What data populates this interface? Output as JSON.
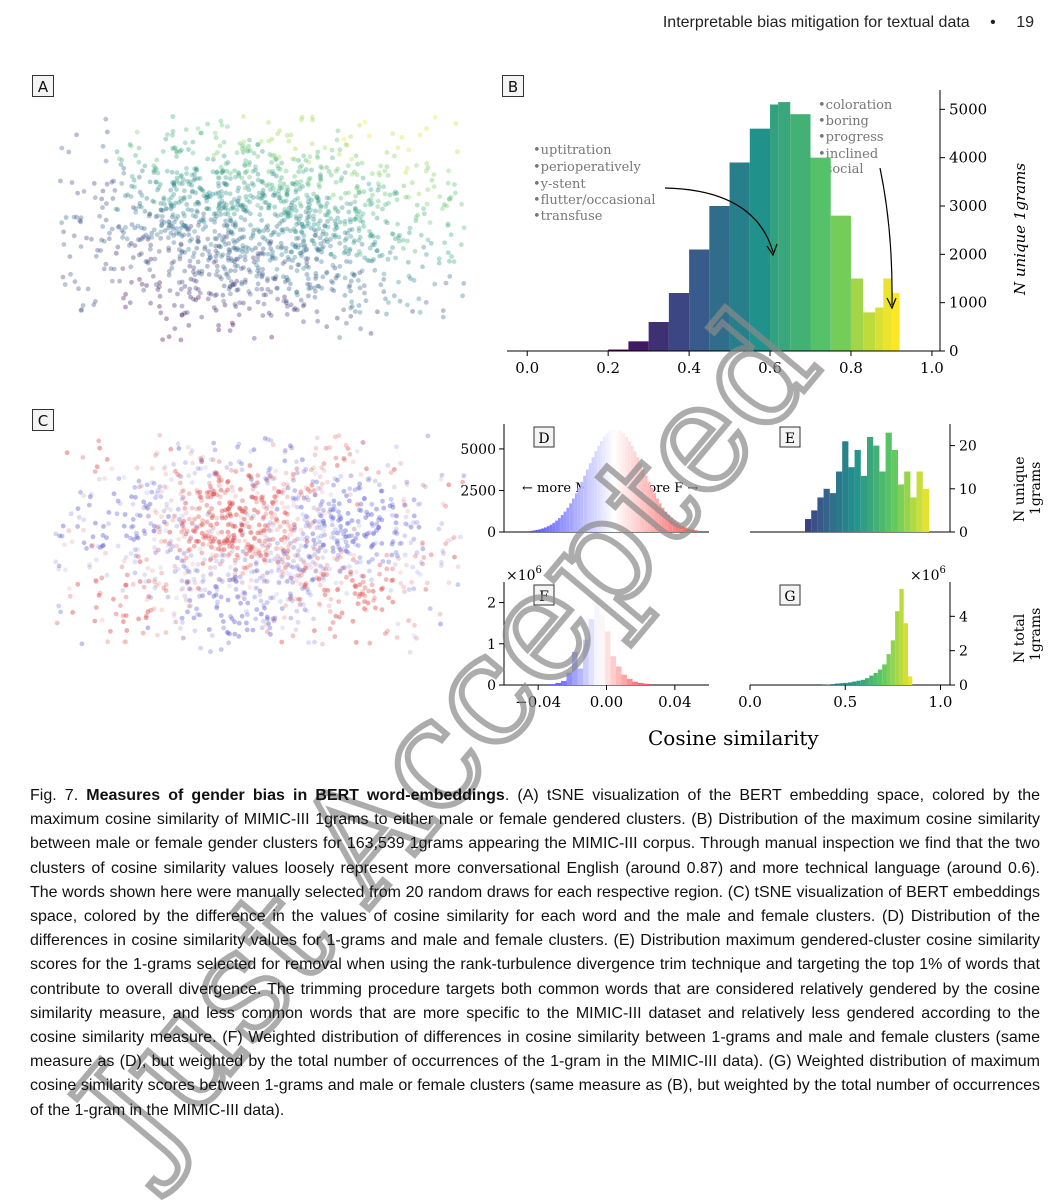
{
  "header": {
    "running_title": "Interpretable bias mitigation for textual data",
    "separator": "•",
    "page_number": "19"
  },
  "panels": {
    "A": "A",
    "B": "B",
    "C": "C",
    "D": "D",
    "E": "E",
    "F": "F",
    "G": "G"
  },
  "panel_b": {
    "ylabel": "N unique 1grams",
    "left_words": [
      "•uptitration",
      "•perioperatively",
      "•y-stent",
      "•flutter/occasional",
      "•transfuse"
    ],
    "right_words": [
      "•coloration",
      "•boring",
      "•progress",
      "•inclined",
      "•social"
    ]
  },
  "panel_d": {
    "left_arrow": "←  more M",
    "right_arrow": "more F  →"
  },
  "panel_e": {
    "ylabel_line1": "N unique",
    "ylabel_line2": "1grams"
  },
  "panel_g": {
    "ylabel_line1": "N total",
    "ylabel_line2": "1grams"
  },
  "shared_xlabel": "Cosine similarity",
  "multiplier_f": "×10",
  "multiplier_g": "×10",
  "multiplier_exp": "6",
  "watermark": "Just Accepted",
  "caption": {
    "fig": "Fig. 7.",
    "title": "Measures of gender bias in BERT word-embeddings",
    "body": ". (A) tSNE visualization of the BERT embedding space, colored by the maximum cosine similarity of MIMIC-III 1grams to either male or female gendered clusters. (B) Distribution of the maximum cosine similarity between male or female gender clusters for 163,539 1grams appearing the MIMIC-III corpus. Through manual inspection we find that the two clusters of cosine similarity values loosely represent more conversational English (around 0.87) and more technical language (around 0.6). The words shown here were manually selected from 20 random draws for each respective region. (C) tSNE visualization of BERT embeddings space, colored by the difference in the values of cosine similarity for each word and the male and female clusters. (D) Distribution of the differences in cosine similarity values for 1-grams and male and female clusters. (E) Distribution maximum gendered-cluster cosine similarity scores for the 1-grams selected for removal when using the rank-turbulence divergence trim technique and targeting the top 1% of words that contribute to overall divergence. The trimming procedure targets both common words that are considered relatively gendered by the cosine similarity measure, and less common words that are more specific to the MIMIC-III dataset and relatively less gendered according to the cosine similarity measure. (F) Weighted distribution of differences in cosine similarity between 1-grams and male and female clusters (same measure as (D), but weighted by the total number of occurrences of the 1-gram in the MIMIC-III data). (G) Weighted distribution of maximum cosine similarity scores between 1-grams and male or female clusters (same measure as (B), but weighted by the total number of occurrences of the 1-gram in the MIMIC-III data)."
  },
  "chart_data": [
    {
      "panel": "B",
      "type": "bar",
      "xlabel": "",
      "ylabel": "N unique 1grams",
      "xlim": [
        -0.05,
        1.02
      ],
      "ylim": [
        0,
        5400
      ],
      "xticks": [
        "0.0",
        "0.2",
        "0.4",
        "0.6",
        "0.8",
        "1.0"
      ],
      "yticks": [
        "0",
        "1000",
        "2000",
        "3000",
        "4000",
        "5000"
      ],
      "x": [
        0.2,
        0.25,
        0.3,
        0.35,
        0.4,
        0.45,
        0.5,
        0.55,
        0.6,
        0.62,
        0.65,
        0.7,
        0.75,
        0.8,
        0.83,
        0.86,
        0.88,
        0.9,
        0.92
      ],
      "values": [
        30,
        200,
        600,
        1200,
        2100,
        3000,
        3900,
        4600,
        5100,
        5150,
        4900,
        4000,
        2800,
        1500,
        800,
        900,
        1500,
        1200,
        100
      ]
    },
    {
      "panel": "D",
      "type": "bar",
      "ylim": [
        0,
        6500
      ],
      "yticks": [
        "0",
        "2500",
        "5000"
      ],
      "x": [
        -0.06,
        -0.045,
        -0.03,
        -0.015,
        0.0,
        0.015,
        0.03,
        0.045,
        0.06
      ],
      "values": [
        50,
        300,
        1800,
        5000,
        6200,
        5000,
        1800,
        300,
        50
      ]
    },
    {
      "panel": "E",
      "type": "bar",
      "ylim": [
        0,
        25
      ],
      "yticks": [
        "0",
        "10",
        "20"
      ],
      "x": [
        0.2,
        0.3,
        0.4,
        0.5,
        0.6,
        0.7,
        0.75,
        0.8,
        0.85,
        0.9,
        0.95
      ],
      "values": [
        4,
        10,
        15,
        21,
        18,
        22,
        20,
        15,
        23,
        11,
        14
      ]
    },
    {
      "panel": "F",
      "type": "bar",
      "xticks": [
        "−0.04",
        "0.00",
        "0.04"
      ],
      "yticks": [
        "0",
        "1",
        "2"
      ],
      "ylim": [
        0,
        2.5
      ],
      "x": [
        -0.03,
        -0.02,
        -0.01,
        -0.005,
        0.0,
        0.005,
        0.01,
        0.02,
        0.03
      ],
      "values": [
        0.1,
        0.4,
        1.3,
        2.0,
        2.4,
        1.5,
        0.7,
        0.3,
        0.1
      ]
    },
    {
      "panel": "G",
      "type": "bar",
      "xticks": [
        "0.0",
        "0.5",
        "1.0"
      ],
      "yticks": [
        "0",
        "2",
        "4"
      ],
      "ylim": [
        0,
        6
      ],
      "x": [
        0.4,
        0.5,
        0.6,
        0.7,
        0.75,
        0.8,
        0.85,
        0.88,
        0.9,
        0.93
      ],
      "values": [
        0.05,
        0.15,
        0.3,
        0.5,
        0.8,
        1.2,
        2.5,
        5.6,
        3.8,
        0.3
      ]
    }
  ]
}
